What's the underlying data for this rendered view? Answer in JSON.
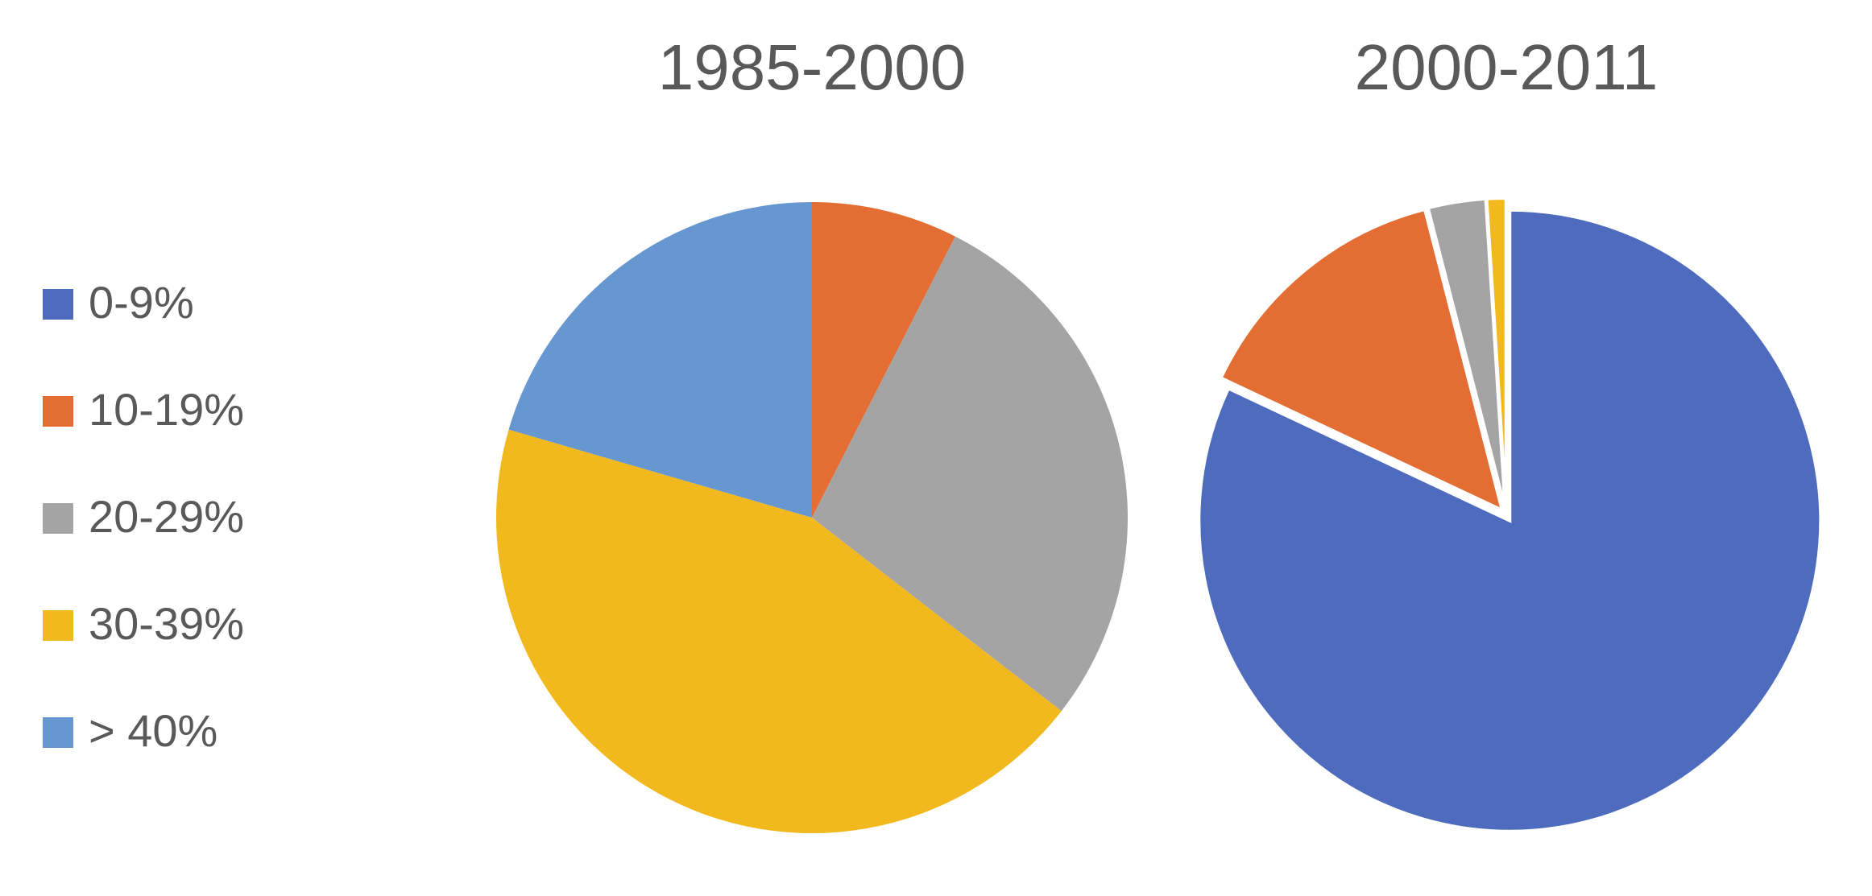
{
  "chart_data": [
    {
      "type": "pie",
      "title": "1985-2000",
      "categories": [
        "0-9%",
        "10-19%",
        "20-29%",
        "30-39%",
        "> 40%"
      ],
      "values": [
        0,
        7.5,
        28,
        44,
        20.5
      ],
      "colors": [
        "#4e6bbd",
        "#e46d33",
        "#a5a4a4",
        "#f2b91e",
        "#6797d1"
      ],
      "exploded": false
    },
    {
      "type": "pie",
      "title": "2000-2011",
      "categories": [
        "0-9%",
        "10-19%",
        "20-29%",
        "30-39%",
        "> 40%"
      ],
      "values": [
        82,
        14,
        3,
        1,
        0
      ],
      "colors": [
        "#4e6bbd",
        "#e46d33",
        "#a5a4a4",
        "#f2b91e",
        "#6797d1"
      ],
      "exploded": true
    }
  ]
}
